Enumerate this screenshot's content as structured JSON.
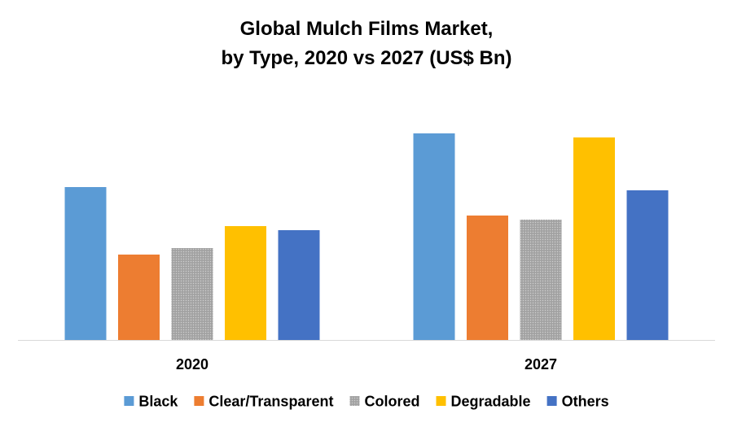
{
  "chart_data": {
    "type": "bar",
    "title_lines": [
      "Global Mulch Films Market,",
      "by Type, 2020 vs 2027 (US$ Bn)"
    ],
    "title": "Global Mulch Films Market, by Type, 2020 vs 2027 (US$ Bn)",
    "xlabel": "",
    "ylabel": "",
    "categories": [
      "2020",
      "2027"
    ],
    "series": [
      {
        "name": "Black",
        "color": "#5B9BD5",
        "pattern": "solid",
        "values": [
          188,
          254
        ]
      },
      {
        "name": "Clear/Transparent",
        "color": "#ED7D31",
        "pattern": "solid",
        "values": [
          105,
          153
        ]
      },
      {
        "name": "Colored",
        "color": "#A5A5A5",
        "pattern": "dots",
        "values": [
          113,
          148
        ]
      },
      {
        "name": "Degradable",
        "color": "#FFC000",
        "pattern": "solid",
        "values": [
          140,
          249
        ]
      },
      {
        "name": "Others",
        "color": "#4472C4",
        "pattern": "solid",
        "values": [
          135,
          184
        ]
      }
    ],
    "ylim": [
      0,
      300
    ],
    "grid": false,
    "y_axis_visible": false,
    "legend_position": "bottom"
  }
}
